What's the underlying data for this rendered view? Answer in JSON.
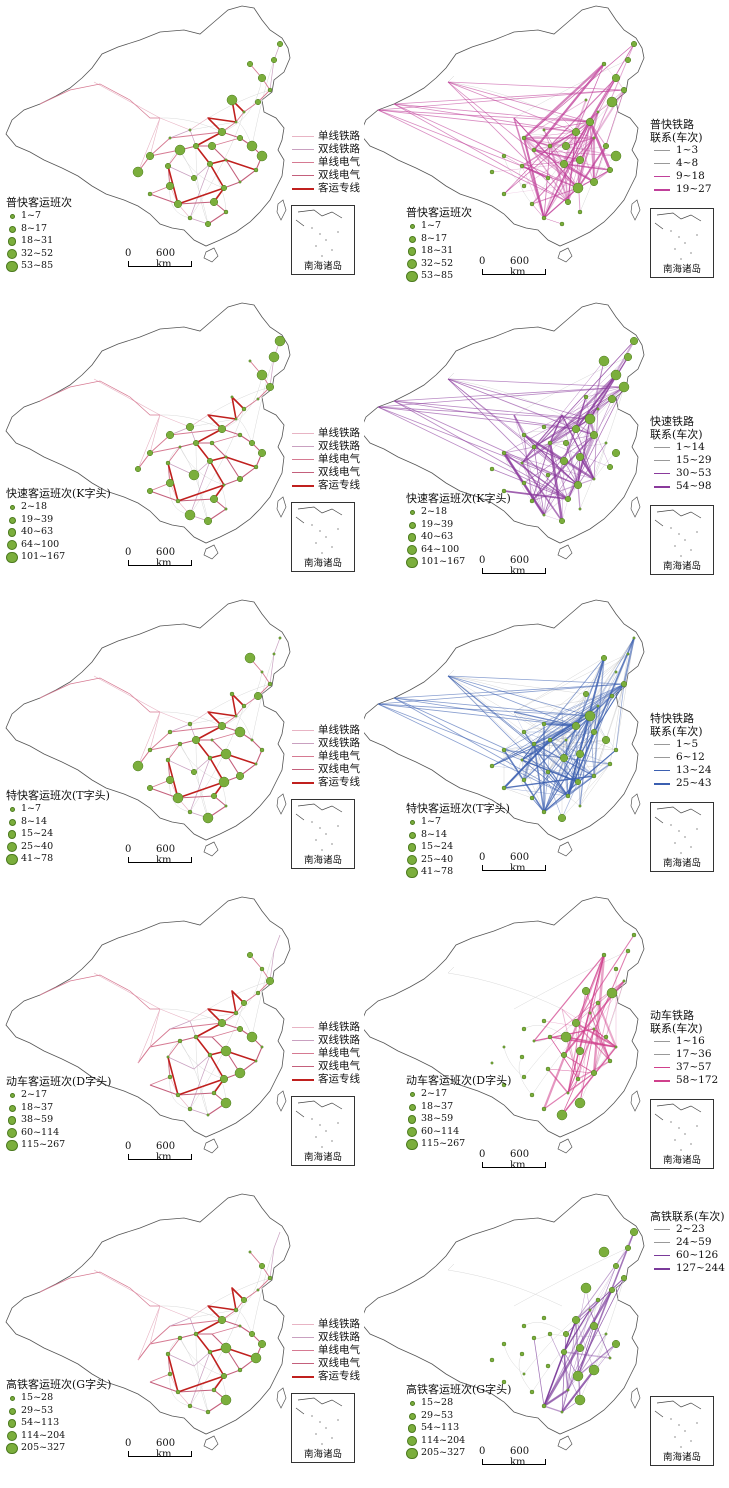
{
  "panels": [
    {
      "stations_title": "普快客运班次",
      "station_classes": [
        "1~7",
        "8~17",
        "18~31",
        "32~52",
        "53~85"
      ],
      "links_title": [
        "普快铁路",
        "联系(车次)"
      ],
      "link_classes": [
        "1~3",
        "4~8",
        "9~18",
        "19~27"
      ],
      "link_color": "#c0409a"
    },
    {
      "stations_title": "快速客运班次(K字头)",
      "station_classes": [
        "2~18",
        "19~39",
        "40~63",
        "64~100",
        "101~167"
      ],
      "links_title": [
        "快速铁路",
        "联系(车次)"
      ],
      "link_classes": [
        "1~14",
        "15~29",
        "30~53",
        "54~98"
      ],
      "link_color": "#8a3a9c"
    },
    {
      "stations_title": "特快客运班次(T字头)",
      "station_classes": [
        "1~7",
        "8~14",
        "15~24",
        "25~40",
        "41~78"
      ],
      "links_title": [
        "特快铁路",
        "联系(车次)"
      ],
      "link_classes": [
        "1~5",
        "6~12",
        "13~24",
        "25~43"
      ],
      "link_color": "#3b5fb0"
    },
    {
      "stations_title": "动车客运班次(D字头)",
      "station_classes": [
        "2~17",
        "18~37",
        "38~59",
        "60~114",
        "115~267"
      ],
      "links_title": [
        "动车铁路",
        "联系(车次)"
      ],
      "link_classes": [
        "1~16",
        "17~36",
        "37~57",
        "58~172"
      ],
      "link_color": "#d0408c"
    },
    {
      "stations_title": "高铁客运班次(G字头)",
      "station_classes": [
        "15~28",
        "29~53",
        "54~113",
        "114~204",
        "205~327"
      ],
      "links_title": [
        "高铁联系(车次)"
      ],
      "link_classes": [
        "2~23",
        "24~59",
        "60~126",
        "127~244"
      ],
      "link_color": "#7a3a9a"
    }
  ],
  "rail_legend": [
    "单线铁路",
    "双线铁路",
    "单线电气",
    "双线电气",
    "客运专线"
  ],
  "rail_colors": [
    "#e8b4c4",
    "#c9a0c0",
    "#d67a92",
    "#c4607c",
    "#c0201e"
  ],
  "scale_zero": "0",
  "scale_label": "600 km",
  "inset_label": "南海诸岛",
  "colors": {
    "station_fill": "#7bae3c",
    "station_stroke": "#4c7a1f",
    "gray_links": "#a8a8a8"
  }
}
